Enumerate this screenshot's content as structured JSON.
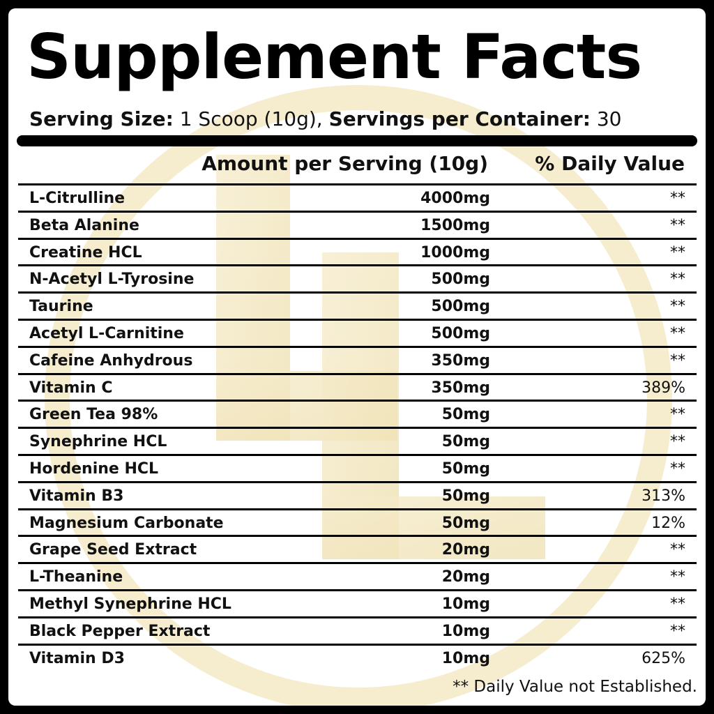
{
  "title": "Supplement Facts",
  "serving": {
    "size_label": "Serving Size:",
    "size_value": "1 Scoop (10g),",
    "per_container_label": "Servings per Container:",
    "per_container_value": "30"
  },
  "table": {
    "amount_header": "Amount per Serving (10g)",
    "dv_header": "% Daily Value",
    "rows": [
      {
        "name": "L-Citrulline",
        "amount": "4000mg",
        "dv": "**"
      },
      {
        "name": "Beta Alanine",
        "amount": "1500mg",
        "dv": "**"
      },
      {
        "name": "Creatine HCL",
        "amount": "1000mg",
        "dv": "**"
      },
      {
        "name": "N-Acetyl L-Tyrosine",
        "amount": "500mg",
        "dv": "**"
      },
      {
        "name": "Taurine",
        "amount": "500mg",
        "dv": "**"
      },
      {
        "name": "Acetyl L-Carnitine",
        "amount": "500mg",
        "dv": "**"
      },
      {
        "name": "Cafeine Anhydrous",
        "amount": "350mg",
        "dv": "**"
      },
      {
        "name": "Vitamin C",
        "amount": "350mg",
        "dv": "389%"
      },
      {
        "name": "Green Tea 98%",
        "amount": "50mg",
        "dv": "**"
      },
      {
        "name": "Synephrine HCL",
        "amount": "50mg",
        "dv": "**"
      },
      {
        "name": "Hordenine HCL",
        "amount": "50mg",
        "dv": "**"
      },
      {
        "name": "Vitamin B3",
        "amount": "50mg",
        "dv": "313%"
      },
      {
        "name": "Magnesium Carbonate",
        "amount": "50mg",
        "dv": "12%"
      },
      {
        "name": "Grape Seed Extract",
        "amount": "20mg",
        "dv": "**"
      },
      {
        "name": "L-Theanine",
        "amount": "20mg",
        "dv": "**"
      },
      {
        "name": "Methyl Synephrine HCL",
        "amount": "10mg",
        "dv": "**"
      },
      {
        "name": "Black Pepper Extract",
        "amount": "10mg",
        "dv": "**"
      },
      {
        "name": "Vitamin D3",
        "amount": "10mg",
        "dv": "625%"
      }
    ]
  },
  "footnote": "** Daily Value not Established.",
  "colors": {
    "background": "#000000",
    "panel": "#ffffff",
    "text": "#111111",
    "watermark": "#f3e7c0"
  }
}
